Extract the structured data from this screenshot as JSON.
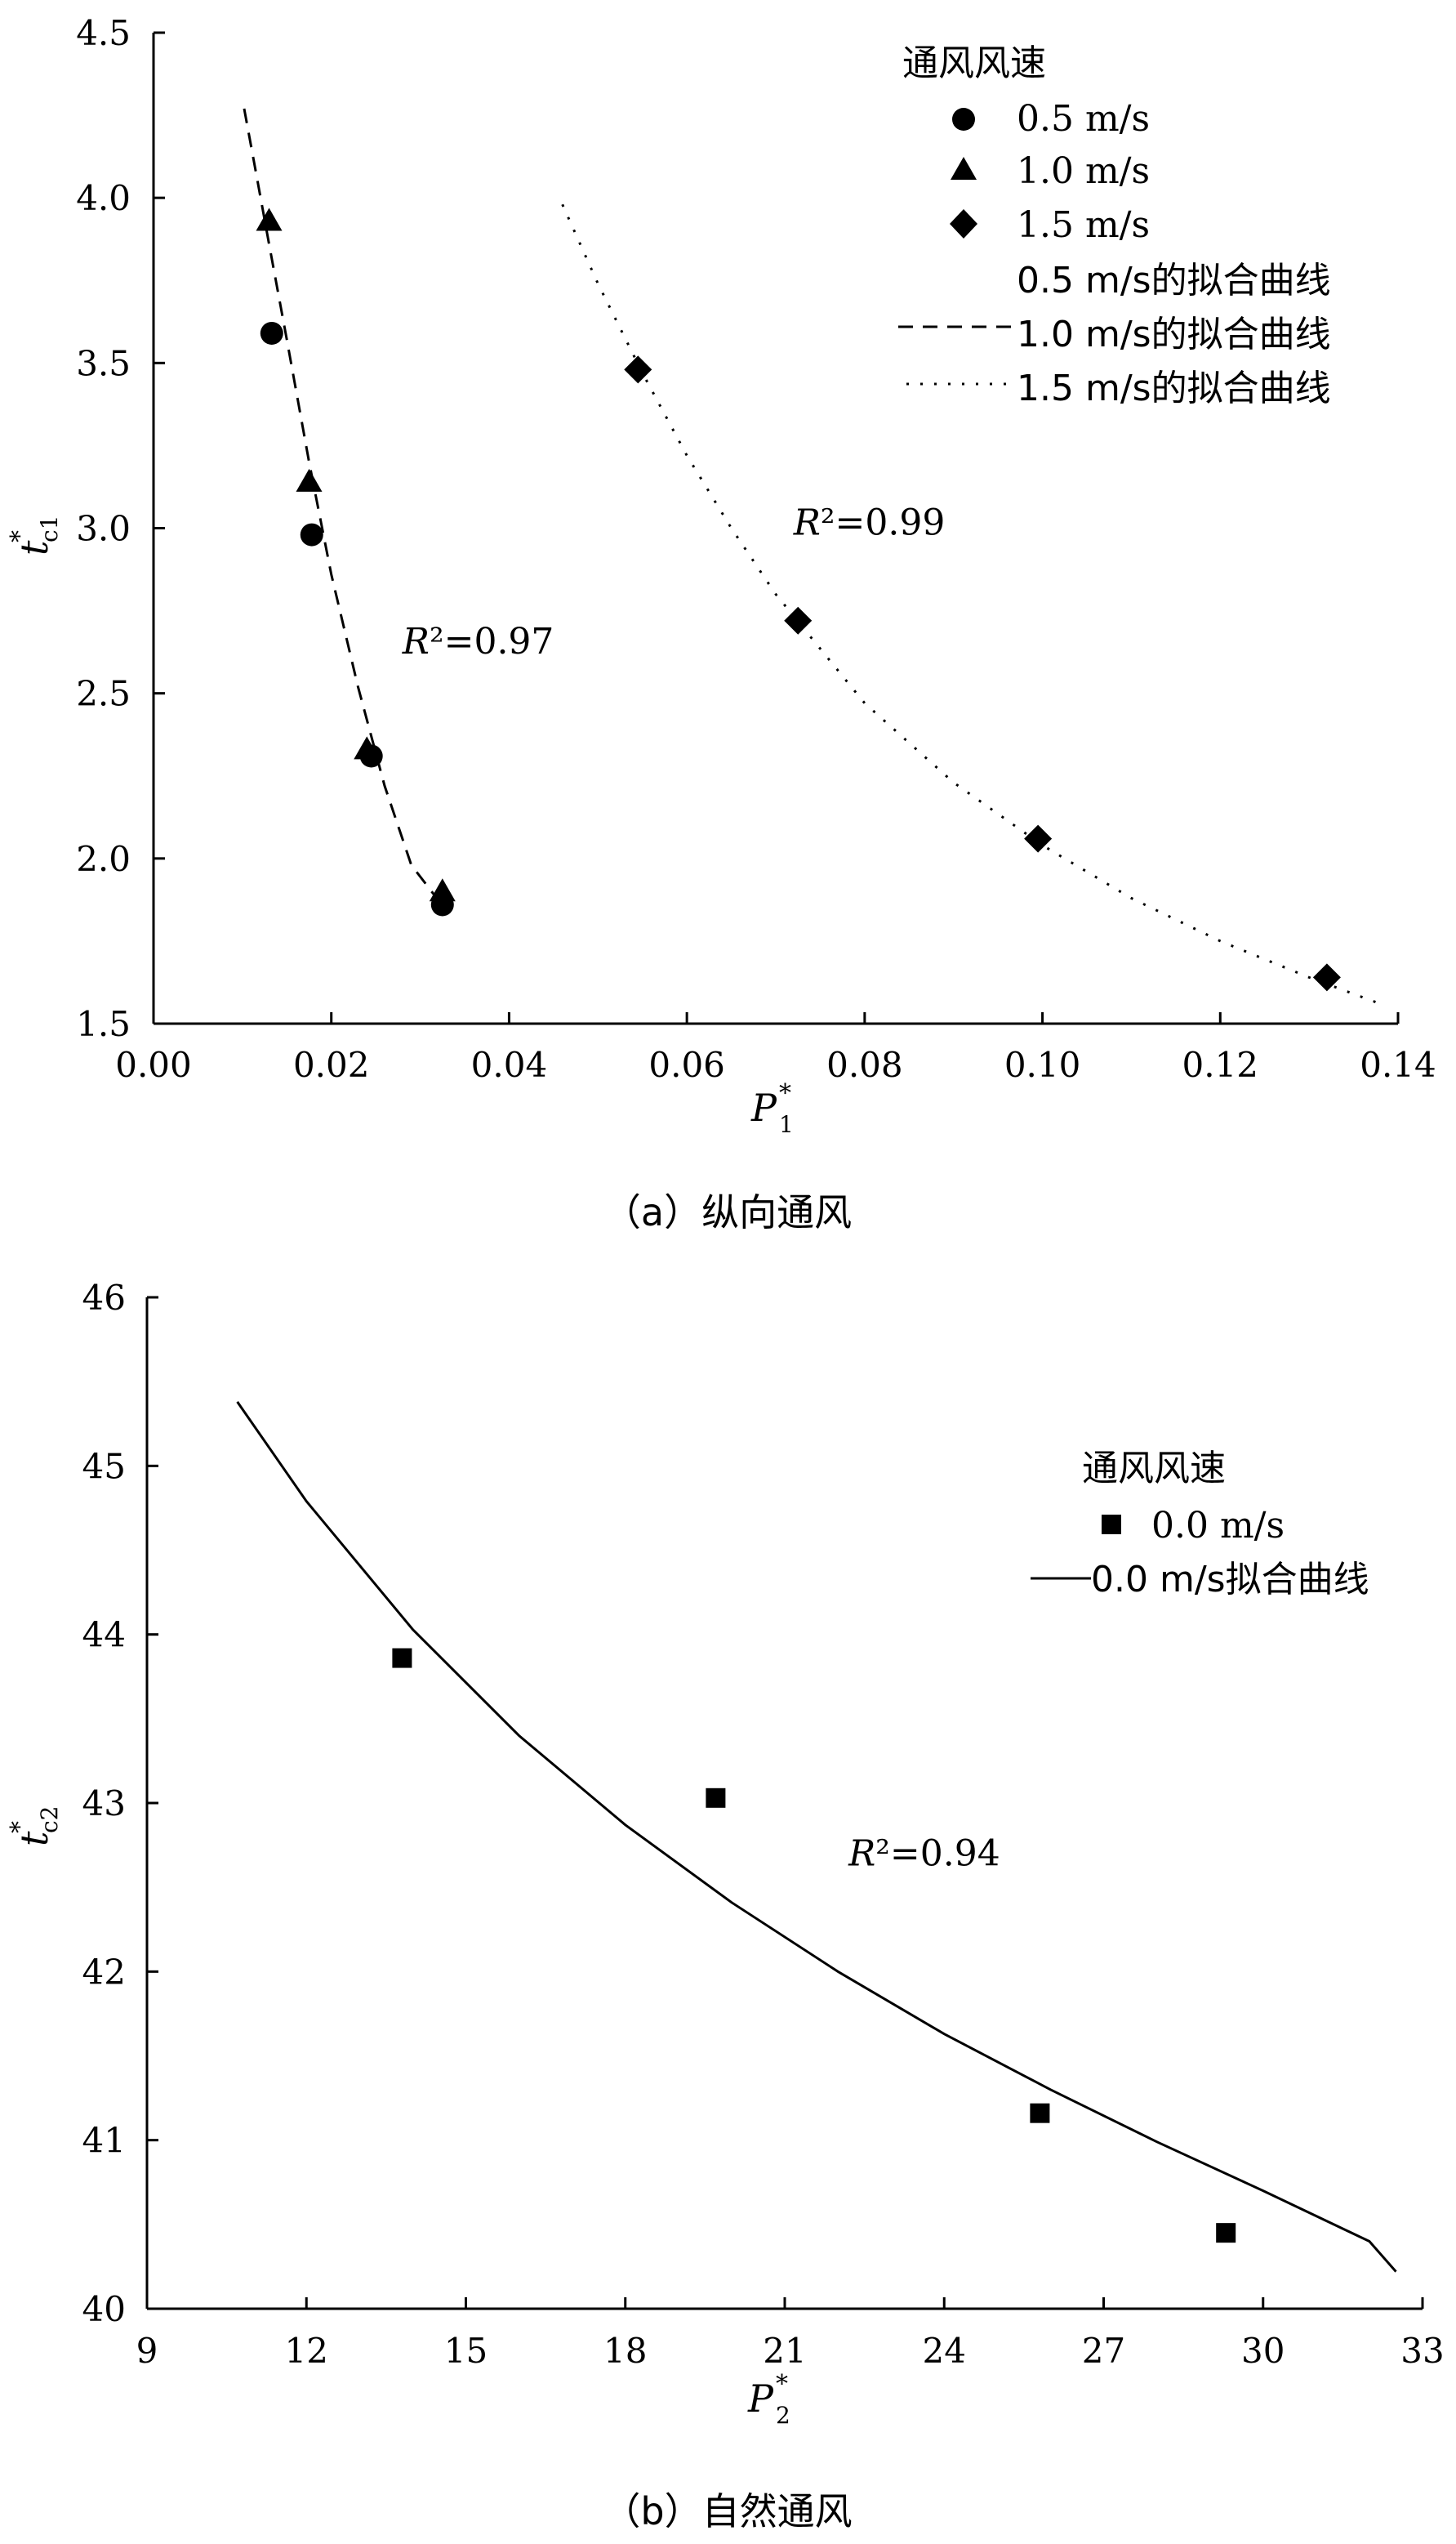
{
  "chart_data": [
    {
      "type": "scatter",
      "caption": "（a）纵向通风",
      "xlabel_main": "P",
      "xlabel_sup": "*",
      "xlabel_sub": "1",
      "ylabel_main": "t",
      "ylabel_sup": "*",
      "ylabel_sub": "c1",
      "xlim": [
        0.0,
        0.14
      ],
      "ylim": [
        1.5,
        4.5
      ],
      "xticks": [
        0.0,
        0.02,
        0.04,
        0.06,
        0.08,
        0.1,
        0.12,
        0.14
      ],
      "xtick_labels": [
        "0.00",
        "0.02",
        "0.04",
        "0.06",
        "0.08",
        "0.10",
        "0.12",
        "0.14"
      ],
      "yticks": [
        1.5,
        2.0,
        2.5,
        3.0,
        3.5,
        4.0,
        4.5
      ],
      "ytick_labels": [
        "1.5",
        "2.0",
        "2.5",
        "3.0",
        "3.5",
        "4.0",
        "4.5"
      ],
      "legend_title": "通风风速",
      "legend_placement": "top-right",
      "series": [
        {
          "name": "0.5 m/s",
          "marker": "circle",
          "x": [
            0.0133,
            0.0178,
            0.0245,
            0.0325
          ],
          "y": [
            3.59,
            2.98,
            2.31,
            1.86
          ]
        },
        {
          "name": "1.0 m/s",
          "marker": "triangle",
          "x": [
            0.013,
            0.0175,
            0.024,
            0.0325
          ],
          "y": [
            3.93,
            3.14,
            2.33,
            1.9
          ]
        },
        {
          "name": "1.5 m/s",
          "marker": "diamond",
          "x": [
            0.0545,
            0.0725,
            0.0995,
            0.132
          ],
          "y": [
            3.48,
            2.72,
            2.06,
            1.64
          ]
        }
      ],
      "fits": [
        {
          "name": "0.5 m/s的拟合曲线",
          "style": "none",
          "x": [],
          "y": []
        },
        {
          "name": "1.0 m/s的拟合曲线",
          "style": "dashed",
          "x": [
            0.0102,
            0.0115,
            0.013,
            0.015,
            0.0175,
            0.02,
            0.023,
            0.026,
            0.029,
            0.033
          ],
          "y": [
            4.27,
            4.08,
            3.86,
            3.57,
            3.2,
            2.86,
            2.52,
            2.22,
            1.98,
            1.84
          ]
        },
        {
          "name": "1.5 m/s的拟合曲线",
          "style": "dotted",
          "x": [
            0.046,
            0.05,
            0.055,
            0.06,
            0.065,
            0.07,
            0.08,
            0.09,
            0.1,
            0.11,
            0.12,
            0.13,
            0.138
          ],
          "y": [
            3.98,
            3.74,
            3.47,
            3.22,
            3.0,
            2.8,
            2.47,
            2.23,
            2.04,
            1.88,
            1.75,
            1.64,
            1.56
          ]
        }
      ],
      "annotations": [
        {
          "text": "R²=0.97",
          "x": 0.028,
          "y": 2.62
        },
        {
          "text": "R²=0.99",
          "x": 0.072,
          "y": 2.98
        }
      ]
    },
    {
      "type": "scatter",
      "caption": "（b）自然通风",
      "xlabel_main": "P",
      "xlabel_sup": "*",
      "xlabel_sub": "2",
      "ylabel_main": "t",
      "ylabel_sup": "*",
      "ylabel_sub": "c2",
      "xlim": [
        9,
        33
      ],
      "ylim": [
        40,
        46
      ],
      "xticks": [
        9,
        12,
        15,
        18,
        21,
        24,
        27,
        30,
        33
      ],
      "xtick_labels": [
        "9",
        "12",
        "15",
        "18",
        "21",
        "24",
        "27",
        "30",
        "33"
      ],
      "yticks": [
        40,
        41,
        42,
        43,
        44,
        45,
        46
      ],
      "ytick_labels": [
        "40",
        "41",
        "42",
        "43",
        "44",
        "45",
        "46"
      ],
      "legend_title": "通风风速",
      "legend_placement": "top-right",
      "series": [
        {
          "name": "0.0 m/s",
          "marker": "square",
          "x": [
            13.8,
            19.7,
            25.8,
            29.3
          ],
          "y": [
            43.86,
            43.03,
            41.16,
            40.45
          ]
        }
      ],
      "fits": [
        {
          "name": "0.0 m/s拟合曲线",
          "style": "solid",
          "x": [
            10.7,
            12,
            14,
            16,
            18,
            20,
            22,
            24,
            26,
            28,
            30,
            32,
            32.5
          ],
          "y": [
            45.38,
            44.79,
            44.03,
            43.4,
            42.87,
            42.41,
            42.0,
            41.63,
            41.3,
            40.99,
            40.7,
            40.4,
            40.22
          ]
        }
      ],
      "annotations": [
        {
          "text": "R²=0.94",
          "x": 22.2,
          "y": 42.63
        }
      ]
    }
  ]
}
